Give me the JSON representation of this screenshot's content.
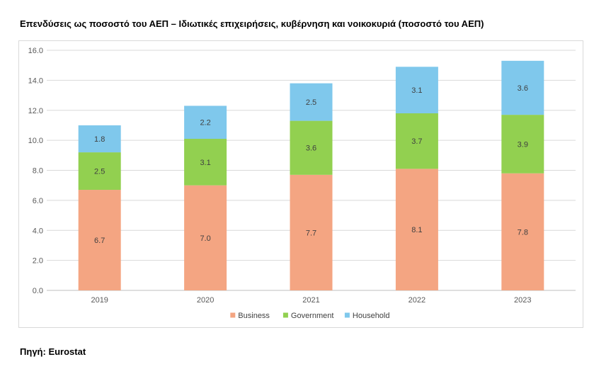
{
  "chart_data": {
    "type": "bar",
    "stacked": true,
    "title": "Επενδύσεις ως ποσοστό του ΑΕΠ – Ιδιωτικές επιχειρήσεις, κυβέρνηση και νοικοκυριά (ποσοστό του ΑΕΠ)",
    "categories": [
      "2019",
      "2020",
      "2021",
      "2022",
      "2023"
    ],
    "series": [
      {
        "name": "Business",
        "color": "#f4a582",
        "values": [
          6.7,
          7.0,
          7.7,
          8.1,
          7.8
        ],
        "labels": [
          "6.7",
          "7.0",
          "7.7",
          "8.1",
          "7.8"
        ]
      },
      {
        "name": "Government",
        "color": "#92d050",
        "values": [
          2.5,
          3.1,
          3.6,
          3.7,
          3.9
        ],
        "labels": [
          "2.5",
          "3.1",
          "3.6",
          "3.7",
          "3.9"
        ]
      },
      {
        "name": "Household",
        "color": "#7fc8ec",
        "values": [
          1.8,
          2.2,
          2.5,
          3.1,
          3.6
        ],
        "labels": [
          "1.8",
          "2.2",
          "2.5",
          "3.1",
          "3.6"
        ]
      }
    ],
    "ylim": [
      0,
      16
    ],
    "yticks": [
      "0.0",
      "2.0",
      "4.0",
      "6.0",
      "8.0",
      "10.0",
      "12.0",
      "14.0",
      "16.0"
    ],
    "xlabel": "",
    "ylabel": "",
    "grid": true,
    "legend": "bottom"
  },
  "source": "Πηγή: Eurostat"
}
